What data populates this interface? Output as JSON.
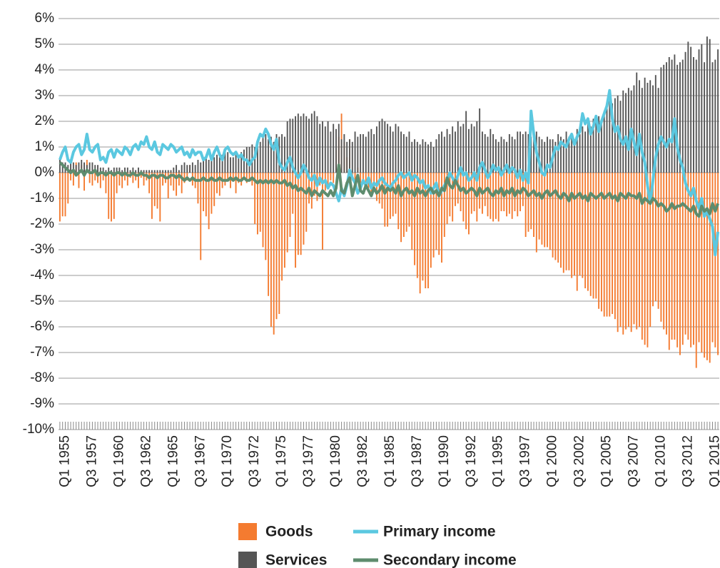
{
  "chart_data": {
    "type": "bar",
    "categories": [
      null,
      null,
      "Q1 1955",
      null,
      null,
      null,
      null,
      null,
      null,
      null,
      null,
      null,
      "Q3 1957",
      null,
      null,
      null,
      null,
      null,
      null,
      null,
      null,
      null,
      "Q1 1960",
      null,
      null,
      null,
      null,
      null,
      null,
      null,
      null,
      null,
      "Q3 1962",
      null,
      null,
      null,
      null,
      null,
      null,
      null,
      null,
      null,
      "Q1 1965",
      null,
      null,
      null,
      null,
      null,
      null,
      null,
      null,
      null,
      "Q3 1967",
      null,
      null,
      null,
      null,
      null,
      null,
      null,
      null,
      null,
      "Q1 1970",
      null,
      null,
      null,
      null,
      null,
      null,
      null,
      null,
      null,
      "Q3 1972",
      null,
      null,
      null,
      null,
      null,
      null,
      null,
      null,
      null,
      "Q1 1975",
      null,
      null,
      null,
      null,
      null,
      null,
      null,
      null,
      null,
      "Q3 1977",
      null,
      null,
      null,
      null,
      null,
      null,
      null,
      null,
      null,
      "Q1 1980",
      null,
      null,
      null,
      null,
      null,
      null,
      null,
      null,
      null,
      "Q3 1982",
      null,
      null,
      null,
      null,
      null,
      null,
      null,
      null,
      null,
      "Q1 1985",
      null,
      null,
      null,
      null,
      null,
      null,
      null,
      null,
      null,
      "Q3 1987",
      null,
      null,
      null,
      null,
      null,
      null,
      null,
      null,
      null,
      "Q1 1990",
      null,
      null,
      null,
      null,
      null,
      null,
      null,
      null,
      null,
      "Q3 1992",
      null,
      null,
      null,
      null,
      null,
      null,
      null,
      null,
      null,
      "Q1 1995",
      null,
      null,
      null,
      null,
      null,
      null,
      null,
      null,
      null,
      "Q3 1997",
      null,
      null,
      null,
      null,
      null,
      null,
      null,
      null,
      null,
      "Q1 2000",
      null,
      null,
      null,
      null,
      null,
      null,
      null,
      null,
      null,
      "Q3 2002",
      null,
      null,
      null,
      null,
      null,
      null,
      null,
      null,
      null,
      "Q1 2005",
      null,
      null,
      null,
      null,
      null,
      null,
      null,
      null,
      null,
      "Q3 2007",
      null,
      null,
      null,
      null,
      null,
      null,
      null,
      null,
      null,
      "Q1 2010",
      null,
      null,
      null,
      null,
      null,
      null,
      null,
      null,
      null,
      "Q3 2012",
      null,
      null,
      null,
      null,
      null,
      null,
      null,
      null,
      null,
      "Q1 2015",
      null
    ],
    "series": [
      {
        "name": "Goods",
        "type": "bar",
        "color": "#f47b30",
        "values": [
          -1.9,
          -1.7,
          -1.7,
          -1.2,
          -0.3,
          -0.5,
          0.4,
          -0.6,
          0.3,
          -0.7,
          0.5,
          -0.4,
          -0.5,
          -0.3,
          -0.4,
          -0.6,
          -0.3,
          -0.8,
          -1.8,
          -1.9,
          -1.8,
          -0.8,
          -0.5,
          -0.6,
          -0.3,
          -0.5,
          -0.2,
          -0.4,
          -0.3,
          -0.6,
          -0.2,
          -0.5,
          -0.3,
          -0.8,
          -1.8,
          -1.3,
          -1.4,
          -1.9,
          -0.5,
          -0.4,
          -1.0,
          -0.5,
          -0.7,
          -0.9,
          -0.5,
          -0.8,
          -0.4,
          -0.3,
          0.3,
          -0.5,
          -0.6,
          -1.2,
          -3.4,
          -1.5,
          -1.7,
          -2.2,
          -1.6,
          -1.3,
          -0.8,
          -0.9,
          -0.6,
          -0.5,
          -0.3,
          -0.6,
          -0.3,
          -0.8,
          -0.4,
          -0.5,
          -0.2,
          -0.4,
          -0.3,
          -0.5,
          -2.0,
          -2.4,
          -2.3,
          -2.9,
          -3.4,
          -4.8,
          -6.0,
          -6.3,
          -5.7,
          -5.5,
          -4.2,
          -3.7,
          -3.1,
          -2.5,
          -1.6,
          -3.7,
          -3.2,
          -3.2,
          -2.8,
          -2.3,
          -1.2,
          -1.4,
          -0.9,
          -1.1,
          -0.5,
          -3.0,
          -0.7,
          -0.6,
          -0.3,
          -0.4,
          0.9,
          1.4,
          2.3,
          1.2,
          0.6,
          1.3,
          -0.3,
          -0.5,
          0.2,
          -0.4,
          -0.4,
          -0.5,
          -0.6,
          -0.8,
          -0.7,
          -1.1,
          -1.2,
          -1.4,
          -2.1,
          -2.1,
          -1.8,
          -1.7,
          -1.6,
          -2.2,
          -2.7,
          -2.5,
          -2.3,
          -2.1,
          -3.0,
          -3.6,
          -4.1,
          -4.7,
          -4.2,
          -4.5,
          -4.5,
          -3.7,
          -3.3,
          -3.0,
          -3.2,
          -3.5,
          -2.5,
          -2.0,
          -1.7,
          -1.9,
          -1.3,
          -1.2,
          -1.5,
          -1.9,
          -2.2,
          -2.4,
          -1.6,
          -1.5,
          -1.9,
          -1.4,
          -1.6,
          -1.3,
          -1.7,
          -1.8,
          -1.9,
          -1.8,
          -1.9,
          -1.5,
          -1.5,
          -1.7,
          -1.6,
          -1.8,
          -1.5,
          -1.7,
          -1.5,
          -1.3,
          -2.5,
          -2.3,
          -2.2,
          -2.5,
          -3.1,
          -2.6,
          -2.8,
          -2.9,
          -2.9,
          -3.0,
          -3.3,
          -3.4,
          -3.5,
          -3.7,
          -3.9,
          -3.8,
          -3.8,
          -4.1,
          -4.0,
          -4.6,
          -4.0,
          -4.1,
          -4.5,
          -4.6,
          -4.8,
          -4.9,
          -4.9,
          -5.3,
          -5.4,
          -5.6,
          -5.6,
          -5.6,
          -5.5,
          -5.7,
          -6.2,
          -6.0,
          -6.3,
          -6.1,
          -6.0,
          -6.2,
          -5.9,
          -6.1,
          -6.0,
          -6.5,
          -6.7,
          -6.8,
          -6.0,
          -5.2,
          -5.0,
          -5.3,
          -5.8,
          -6.1,
          -6.3,
          -6.9,
          -6.5,
          -6.5,
          -6.8,
          -7.1,
          -6.7,
          -6.3,
          -6.5,
          -6.8,
          -6.7,
          -7.6,
          -6.6,
          -7.0,
          -7.2,
          -7.3,
          -7.4,
          -6.6,
          -6.8,
          -7.1
        ]
      },
      {
        "name": "Services",
        "type": "bar",
        "color": "#555555",
        "values": [
          0.5,
          0.4,
          0.4,
          0.3,
          0.5,
          0.4,
          0.3,
          0.4,
          0.5,
          0.4,
          0.3,
          0.4,
          0.4,
          0.3,
          0.3,
          0.2,
          0.2,
          0.1,
          0.2,
          0.1,
          0.2,
          0.2,
          0.2,
          0.1,
          0.2,
          0.2,
          0.1,
          0.2,
          0.1,
          0.2,
          0.1,
          0.1,
          0.1,
          0.1,
          0.1,
          0.1,
          0.1,
          0.1,
          0.1,
          0.1,
          0.1,
          0.1,
          0.2,
          0.3,
          0.1,
          0.3,
          0.4,
          0.3,
          0.3,
          0.4,
          0.3,
          0.5,
          0.4,
          0.5,
          0.6,
          0.5,
          0.5,
          0.6,
          0.7,
          0.6,
          0.7,
          0.8,
          0.8,
          0.6,
          0.6,
          0.7,
          0.6,
          0.8,
          0.9,
          1.0,
          1.0,
          1.1,
          1.0,
          1.1,
          1.2,
          1.4,
          1.5,
          1.3,
          1.4,
          1.2,
          1.5,
          1.4,
          1.5,
          1.4,
          2.0,
          2.1,
          2.1,
          2.2,
          2.3,
          2.2,
          2.3,
          2.2,
          2.1,
          2.3,
          2.4,
          2.2,
          1.9,
          2.0,
          1.8,
          2.0,
          1.6,
          1.9,
          1.7,
          1.9,
          1.3,
          1.5,
          1.2,
          1.3,
          1.2,
          1.6,
          1.4,
          1.5,
          1.5,
          1.4,
          1.6,
          1.7,
          1.5,
          1.8,
          2.0,
          2.1,
          2.0,
          1.9,
          1.8,
          1.6,
          1.9,
          1.8,
          1.6,
          1.5,
          1.4,
          1.6,
          1.2,
          1.3,
          1.2,
          1.1,
          1.3,
          1.2,
          1.1,
          1.2,
          1.0,
          1.3,
          1.5,
          1.6,
          1.4,
          1.7,
          1.5,
          1.8,
          1.6,
          2.0,
          1.8,
          1.9,
          2.4,
          1.7,
          1.9,
          1.8,
          2.0,
          2.5,
          1.6,
          1.5,
          1.4,
          1.7,
          1.5,
          1.3,
          1.2,
          1.4,
          1.3,
          1.2,
          1.5,
          1.4,
          1.3,
          1.6,
          1.6,
          1.5,
          1.6,
          1.5,
          1.4,
          1.3,
          1.6,
          1.4,
          1.3,
          1.2,
          1.4,
          1.3,
          1.3,
          1.2,
          1.5,
          1.4,
          1.3,
          1.6,
          1.4,
          1.5,
          1.3,
          1.7,
          1.5,
          1.8,
          1.6,
          2.0,
          1.8,
          2.1,
          2.0,
          2.2,
          2.1,
          2.4,
          2.6,
          2.8,
          2.7,
          2.9,
          3.0,
          2.8,
          3.2,
          3.1,
          3.3,
          3.2,
          3.4,
          3.9,
          3.6,
          3.3,
          3.7,
          3.5,
          3.6,
          3.4,
          3.8,
          3.3,
          4.1,
          4.2,
          4.3,
          4.5,
          4.4,
          4.6,
          4.2,
          4.3,
          4.4,
          4.7,
          5.1,
          4.9,
          4.5,
          4.4,
          4.8,
          5.0,
          4.3,
          5.3,
          5.2,
          4.3,
          4.4,
          4.8
        ]
      },
      {
        "name": "Primary income",
        "type": "line",
        "color": "#5bc8e0",
        "values": [
          0.5,
          0.8,
          1.0,
          0.5,
          0.4,
          0.8,
          1.0,
          1.1,
          0.7,
          0.9,
          1.5,
          0.9,
          0.8,
          1.0,
          1.1,
          0.5,
          0.6,
          0.4,
          0.8,
          0.9,
          0.6,
          0.9,
          0.8,
          0.7,
          1.0,
          0.9,
          0.7,
          1.0,
          1.1,
          0.9,
          1.2,
          1.1,
          1.4,
          1.0,
          0.9,
          1.2,
          0.8,
          0.7,
          1.1,
          1.0,
          0.9,
          1.1,
          1.0,
          0.8,
          0.9,
          1.0,
          0.7,
          0.8,
          0.6,
          0.9,
          0.7,
          0.8,
          0.8,
          0.5,
          0.6,
          0.9,
          0.5,
          0.8,
          1.0,
          0.7,
          0.5,
          0.9,
          1.0,
          0.8,
          0.7,
          0.8,
          0.6,
          0.7,
          0.5,
          0.5,
          0.3,
          0.5,
          0.6,
          1.2,
          1.5,
          1.4,
          1.7,
          1.5,
          1.1,
          0.9,
          1.3,
          0.4,
          0.2,
          0.1,
          0.4,
          0.6,
          0.2,
          0.0,
          -0.2,
          0.0,
          0.3,
          0.1,
          -0.2,
          -0.3,
          -0.1,
          -0.5,
          -0.2,
          -0.4,
          -0.3,
          -0.6,
          -0.4,
          -0.5,
          -0.8,
          -1.1,
          -0.6,
          -0.9,
          -0.5,
          0.1,
          -0.2,
          -0.4,
          -0.8,
          -0.6,
          -0.3,
          -0.5,
          -0.2,
          -0.6,
          -0.4,
          -0.5,
          -0.3,
          -0.2,
          -0.4,
          -0.5,
          -0.6,
          -0.4,
          -0.3,
          -0.1,
          0.0,
          -0.2,
          -0.1,
          0.0,
          -0.3,
          -0.1,
          -0.2,
          -0.4,
          -0.3,
          -0.6,
          -0.5,
          -0.8,
          -0.6,
          -0.4,
          -0.9,
          -0.7,
          -0.5,
          -0.3,
          0.0,
          -0.2,
          -0.4,
          -0.1,
          0.2,
          -0.1,
          0.0,
          -0.3,
          -0.2,
          0.0,
          -0.3,
          0.2,
          0.4,
          0.1,
          -0.2,
          0.0,
          0.3,
          0.1,
          0.2,
          -0.1,
          0.1,
          0.3,
          0.0,
          0.2,
          0.1,
          -0.2,
          0.1,
          -0.3,
          0.0,
          -0.4,
          2.4,
          1.5,
          0.8,
          0.4,
          0.0,
          -0.1,
          0.3,
          0.2,
          0.6,
          1.0,
          0.9,
          1.2,
          1.1,
          1.0,
          1.3,
          1.5,
          1.1,
          1.4,
          1.6,
          2.3,
          1.9,
          2.1,
          1.5,
          1.8,
          2.2,
          1.6,
          2.0,
          2.3,
          2.6,
          3.2,
          2.1,
          1.6,
          1.8,
          1.3,
          1.1,
          1.4,
          0.9,
          1.7,
          1.2,
          0.7,
          1.5,
          0.8,
          0.4,
          -0.5,
          -1.2,
          -0.3,
          0.6,
          1.1,
          1.4,
          1.2,
          1.0,
          1.3,
          1.2,
          2.1,
          1.0,
          0.5,
          0.2,
          -0.4,
          -0.7,
          -0.9,
          -0.6,
          -1.1,
          -1.4,
          -1.0,
          -1.7,
          -1.5,
          -1.8,
          -2.1,
          -3.2,
          -2.3
        ]
      },
      {
        "name": "Secondary income",
        "type": "line",
        "color": "#5e8c6e",
        "values": [
          0.4,
          0.3,
          0.2,
          0.1,
          0.0,
          0.1,
          -0.1,
          0.0,
          0.1,
          -0.1,
          0.1,
          0.0,
          0.0,
          0.1,
          -0.1,
          0.0,
          0.0,
          -0.1,
          0.0,
          0.0,
          -0.1,
          0.0,
          0.0,
          -0.1,
          0.0,
          -0.1,
          -0.1,
          0.0,
          -0.1,
          -0.1,
          0.0,
          -0.1,
          -0.1,
          -0.2,
          -0.1,
          -0.1,
          -0.2,
          -0.1,
          -0.1,
          -0.2,
          -0.2,
          -0.1,
          -0.1,
          -0.2,
          -0.1,
          -0.2,
          -0.3,
          -0.2,
          -0.3,
          -0.2,
          -0.3,
          -0.3,
          -0.3,
          -0.2,
          -0.3,
          -0.3,
          -0.2,
          -0.3,
          -0.3,
          -0.2,
          -0.3,
          -0.3,
          -0.3,
          -0.2,
          -0.3,
          -0.2,
          -0.3,
          -0.3,
          -0.2,
          -0.3,
          -0.3,
          -0.2,
          -0.3,
          -0.4,
          -0.3,
          -0.4,
          -0.3,
          -0.4,
          -0.3,
          -0.4,
          -0.3,
          -0.4,
          -0.4,
          -0.3,
          -0.5,
          -0.4,
          -0.6,
          -0.5,
          -0.7,
          -0.6,
          -0.7,
          -0.8,
          -0.6,
          -0.9,
          -0.7,
          -0.8,
          -0.9,
          -0.7,
          -0.8,
          -0.9,
          -0.7,
          -0.9,
          -0.6,
          0.3,
          -0.7,
          -0.8,
          -0.4,
          -0.2,
          -0.9,
          -0.5,
          -0.1,
          -0.7,
          -0.8,
          -0.5,
          -0.7,
          -0.9,
          -0.6,
          -0.8,
          -0.7,
          -0.5,
          -0.8,
          -0.6,
          -0.7,
          -0.6,
          -0.8,
          -0.5,
          -0.9,
          -0.7,
          -0.6,
          -0.8,
          -0.7,
          -0.9,
          -0.6,
          -0.8,
          -0.7,
          -0.9,
          -0.7,
          -0.6,
          -0.8,
          -0.7,
          -0.9,
          -0.6,
          -0.7,
          -0.2,
          -0.5,
          -0.6,
          -0.3,
          -0.5,
          -0.7,
          -0.6,
          -0.8,
          -0.7,
          -0.6,
          -0.7,
          -0.9,
          -0.6,
          -0.8,
          -0.7,
          -0.6,
          -0.8,
          -0.9,
          -0.7,
          -0.8,
          -0.6,
          -0.9,
          -0.7,
          -0.8,
          -0.6,
          -0.9,
          -0.7,
          -0.8,
          -0.6,
          -0.7,
          -0.9,
          -0.8,
          -0.7,
          -0.9,
          -0.8,
          -1.0,
          -0.8,
          -0.7,
          -0.9,
          -0.8,
          -0.7,
          -0.9,
          -1.0,
          -0.8,
          -0.9,
          -1.1,
          -0.8,
          -1.0,
          -0.9,
          -0.8,
          -1.0,
          -0.9,
          -1.1,
          -0.8,
          -0.9,
          -1.0,
          -0.9,
          -0.8,
          -1.0,
          -0.9,
          -0.8,
          -1.0,
          -0.9,
          -1.1,
          -0.8,
          -0.9,
          -1.0,
          -0.8,
          -0.9,
          -0.9,
          -1.0,
          -0.8,
          -1.2,
          -1.0,
          -1.1,
          -1.2,
          -1.0,
          -1.1,
          -1.3,
          -1.2,
          -1.3,
          -1.5,
          -1.4,
          -1.2,
          -1.4,
          -1.3,
          -1.3,
          -1.2,
          -1.3,
          -1.4,
          -1.5,
          -1.3,
          -1.6,
          -1.7,
          -1.3,
          -1.5,
          -1.4,
          -1.6,
          -1.2,
          -1.5,
          -1.2
        ]
      }
    ],
    "ylim": [
      -10,
      6
    ],
    "yticks": [
      {
        "value": -10,
        "label": "-10%"
      },
      {
        "value": -9,
        "label": "-9%"
      },
      {
        "value": -8,
        "label": "-8%"
      },
      {
        "value": -7,
        "label": "-7%"
      },
      {
        "value": -6,
        "label": "-6%"
      },
      {
        "value": -5,
        "label": "-5%"
      },
      {
        "value": -4,
        "label": "-4%"
      },
      {
        "value": -3,
        "label": "-3%"
      },
      {
        "value": -2,
        "label": "-2%"
      },
      {
        "value": -1,
        "label": "-1%"
      },
      {
        "value": 0,
        "label": "0%"
      },
      {
        "value": 1,
        "label": "1%"
      },
      {
        "value": 2,
        "label": "2%"
      },
      {
        "value": 3,
        "label": "3%"
      },
      {
        "value": 4,
        "label": "4%"
      },
      {
        "value": 5,
        "label": "5%"
      },
      {
        "value": 6,
        "label": "6%"
      }
    ],
    "grid": true
  }
}
